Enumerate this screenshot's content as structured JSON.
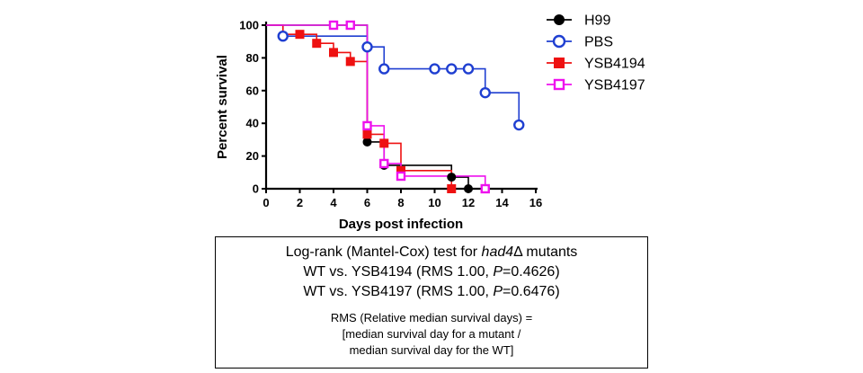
{
  "chart_data": {
    "type": "line",
    "step": true,
    "xlabel": "Days post infection",
    "ylabel": "Percent survival",
    "xlim": [
      0,
      16
    ],
    "ylim": [
      0,
      100
    ],
    "xticks": [
      "0",
      "2",
      "4",
      "6",
      "8",
      "10",
      "12",
      "14",
      "16"
    ],
    "yticks": [
      "0",
      "20",
      "40",
      "60",
      "80",
      "100"
    ],
    "legend_position": "right",
    "series": [
      {
        "name": "H99",
        "color": "#000000",
        "marker": "filled-circle",
        "steps": [
          [
            0,
            100
          ],
          [
            6,
            28.6
          ],
          [
            7,
            14.3
          ],
          [
            11,
            7.1
          ],
          [
            12,
            0
          ]
        ],
        "markers": [
          [
            6,
            28.6
          ],
          [
            7,
            14.3
          ],
          [
            11,
            7.1
          ],
          [
            12,
            0
          ]
        ]
      },
      {
        "name": "PBS",
        "color": "#1f3fd1",
        "marker": "open-circle",
        "steps": [
          [
            0,
            100
          ],
          [
            1,
            93.3
          ],
          [
            6,
            86.7
          ],
          [
            7,
            73.3
          ],
          [
            13,
            58.7
          ],
          [
            15,
            39
          ]
        ],
        "markers": [
          [
            1,
            93.3
          ],
          [
            6,
            86.7
          ],
          [
            7,
            73.3
          ],
          [
            10,
            73.3
          ],
          [
            11,
            73.3
          ],
          [
            12,
            73.3
          ],
          [
            13,
            58.7
          ],
          [
            15,
            39
          ]
        ]
      },
      {
        "name": "YSB4194",
        "color": "#ee1111",
        "marker": "filled-square",
        "steps": [
          [
            0,
            100
          ],
          [
            1,
            94.4
          ],
          [
            3,
            88.9
          ],
          [
            4,
            83.3
          ],
          [
            5,
            77.8
          ],
          [
            6,
            33.3
          ],
          [
            7,
            27.8
          ],
          [
            8,
            11.1
          ],
          [
            11,
            0
          ]
        ],
        "markers": [
          [
            2,
            94.4
          ],
          [
            3,
            88.9
          ],
          [
            4,
            83.3
          ],
          [
            5,
            77.8
          ],
          [
            6,
            33.3
          ],
          [
            7,
            27.8
          ],
          [
            8,
            11.1
          ],
          [
            11,
            0
          ]
        ]
      },
      {
        "name": "YSB4197",
        "color": "#ee11ee",
        "marker": "open-square",
        "steps": [
          [
            0,
            100
          ],
          [
            6,
            38.5
          ],
          [
            7,
            15.4
          ],
          [
            8,
            7.7
          ],
          [
            13,
            0
          ]
        ],
        "markers": [
          [
            4,
            100
          ],
          [
            5,
            100
          ],
          [
            6,
            38.5
          ],
          [
            7,
            15.4
          ],
          [
            8,
            7.7
          ],
          [
            13,
            0
          ]
        ]
      }
    ]
  },
  "stats": {
    "title_pre": "Log-rank (Mantel-Cox) test for ",
    "title_italic": "had4",
    "title_post": "Δ mutants",
    "line1_pre": "WT vs. YSB4194 (RMS 1.00, ",
    "line1_p": "P",
    "line1_post": "=0.4626)",
    "line2_pre": "WT vs. YSB4197 (RMS 1.00, ",
    "line2_p": "P",
    "line2_post": "=0.6476)",
    "note1": "RMS (Relative median survival days) =",
    "note2": "[median survival day for a mutant  /",
    "note3": "median survival day for the WT]"
  }
}
